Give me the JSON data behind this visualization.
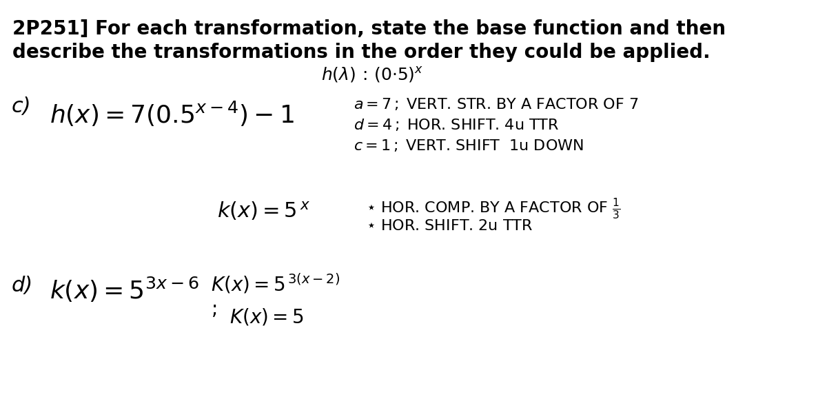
{
  "background_color": "#ffffff",
  "title_line1": "2P251] For each transformation, state the base function and then",
  "title_line2": "describe the transformations in the order they could be applied.",
  "base_func": "h(∧) ∶ (0·5)×",
  "figsize": [
    12.0,
    6.08
  ],
  "dpi": 100
}
